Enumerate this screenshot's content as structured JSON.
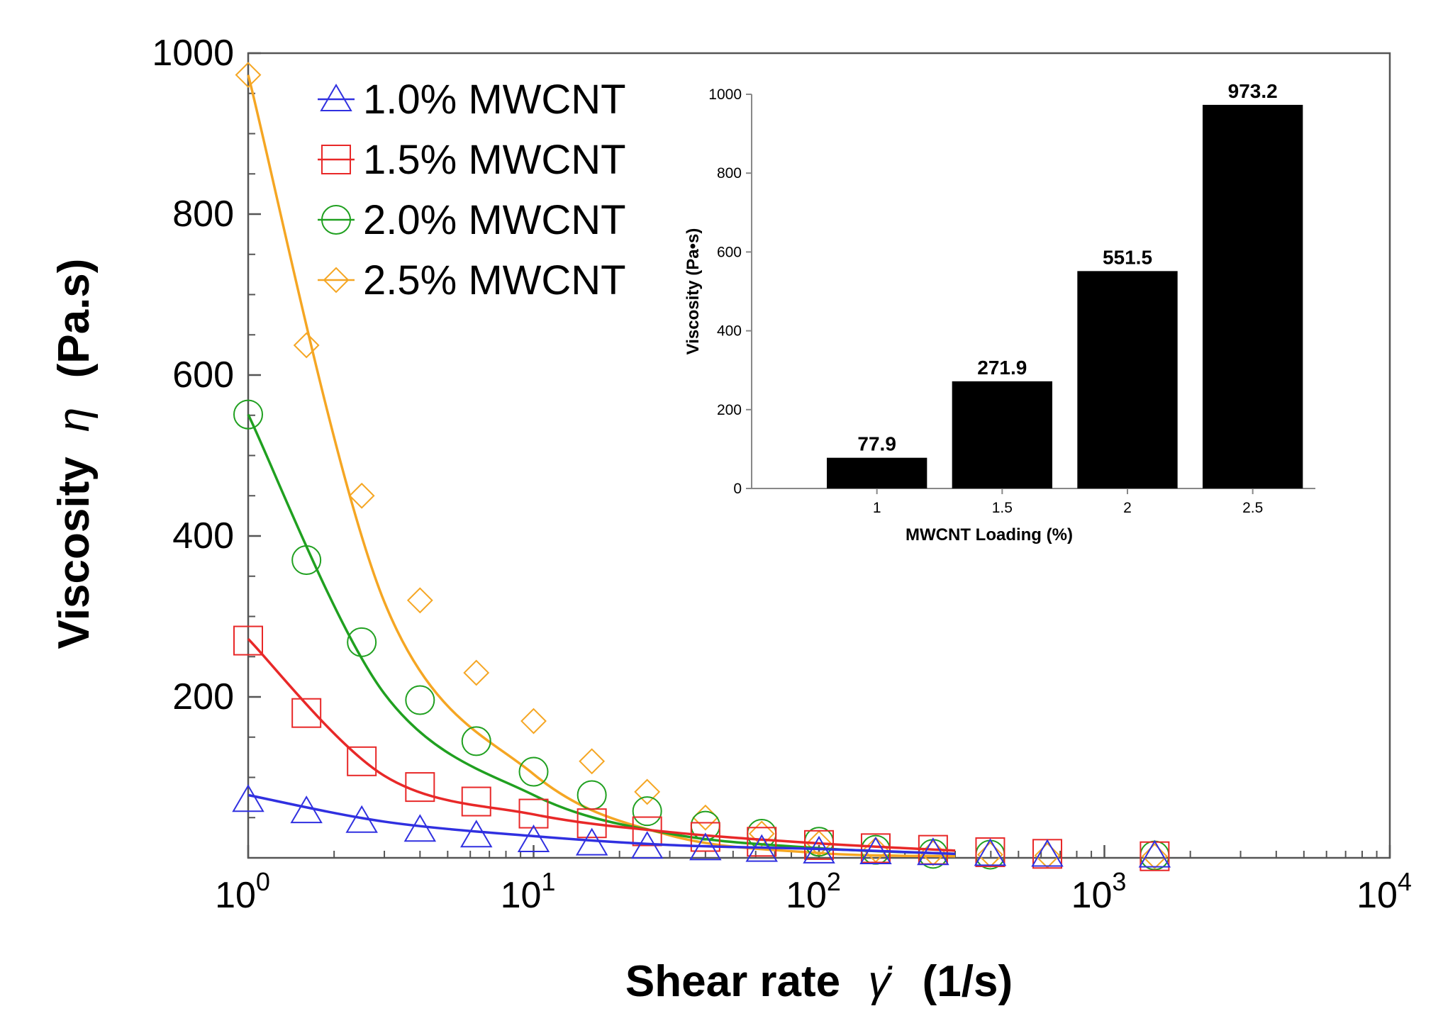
{
  "chart_data": [
    {
      "type": "line",
      "xscale": "log",
      "xlim": [
        1,
        10000
      ],
      "ylim": [
        0,
        1000
      ],
      "xlabel_main": "Shear rate",
      "xlabel_symbol": "γ̇",
      "xlabel_unit": "(1/s)",
      "ylabel_main": "Viscosity",
      "ylabel_symbol": "η",
      "ylabel_unit": "(Pa.s)",
      "yticks": [
        200,
        400,
        600,
        800,
        1000
      ],
      "xticks": [
        {
          "value": 1,
          "exp": "0"
        },
        {
          "value": 10,
          "exp": "1"
        },
        {
          "value": 100,
          "exp": "2"
        },
        {
          "value": 1000,
          "exp": "3"
        },
        {
          "value": 10000,
          "exp": "4"
        }
      ],
      "legend_position": "top-left",
      "series": [
        {
          "name": "1.0% MWCNT",
          "color": "#3030e0",
          "marker": "triangle",
          "x": [
            1,
            1.6,
            2.5,
            4,
            6.3,
            10,
            16,
            25,
            40,
            63,
            100,
            158,
            251,
            398,
            631,
            1500
          ],
          "values": [
            72,
            58,
            46,
            35,
            28,
            22,
            18,
            14,
            12,
            10,
            8,
            7,
            6,
            5,
            4,
            3
          ],
          "fit": [
            78,
            45,
            27,
            16,
            11,
            5
          ]
        },
        {
          "name": "1.5% MWCNT",
          "color": "#e82828",
          "marker": "square",
          "x": [
            1,
            1.6,
            2.5,
            4,
            6.3,
            10,
            16,
            25,
            40,
            63,
            100,
            158,
            251,
            398,
            631,
            1500
          ],
          "values": [
            270,
            180,
            120,
            88,
            70,
            55,
            43,
            33,
            26,
            20,
            16,
            12,
            10,
            7,
            5,
            2
          ],
          "fit": [
            272,
            102,
            54,
            32,
            18,
            9
          ]
        },
        {
          "name": "2.0% MWCNT",
          "color": "#20a020",
          "marker": "circle",
          "x": [
            1,
            1.6,
            2.5,
            4,
            6.3,
            10,
            16,
            25,
            40,
            63,
            100,
            158,
            251,
            398,
            1500
          ],
          "values": [
            551,
            370,
            268,
            196,
            145,
            107,
            78,
            58,
            40,
            30,
            20,
            10,
            5,
            4,
            3
          ],
          "fit": [
            551,
            204,
            78,
            30,
            12,
            5
          ]
        },
        {
          "name": "2.5% MWCNT",
          "color": "#f5a623",
          "marker": "diamond",
          "x": [
            1,
            1.6,
            2.5,
            4,
            6.3,
            10,
            16,
            25,
            40,
            63,
            100,
            158,
            251,
            398,
            631,
            1500
          ],
          "values": [
            973,
            637,
            450,
            320,
            230,
            170,
            120,
            82,
            50,
            30,
            18,
            10,
            6,
            4,
            3,
            2
          ],
          "fit": [
            973,
            318,
            104,
            28,
            6,
            2
          ]
        }
      ],
      "fit_x": [
        1,
        3,
        10,
        30,
        100,
        300
      ]
    },
    {
      "type": "bar",
      "categories": [
        "1",
        "1.5",
        "2",
        "2.5"
      ],
      "values": [
        77.9,
        271.9,
        551.5,
        973.2
      ],
      "value_labels": [
        "77.9",
        "271.9",
        "551.5",
        "973.2"
      ],
      "xlabel": "MWCNT Loading (%)",
      "ylabel": "Viscosity (Pa•s)",
      "ylim": [
        0,
        1000
      ],
      "yticks": [
        "0",
        "200",
        "400",
        "600",
        "800",
        "1000"
      ],
      "bar_color": "#000000"
    }
  ]
}
